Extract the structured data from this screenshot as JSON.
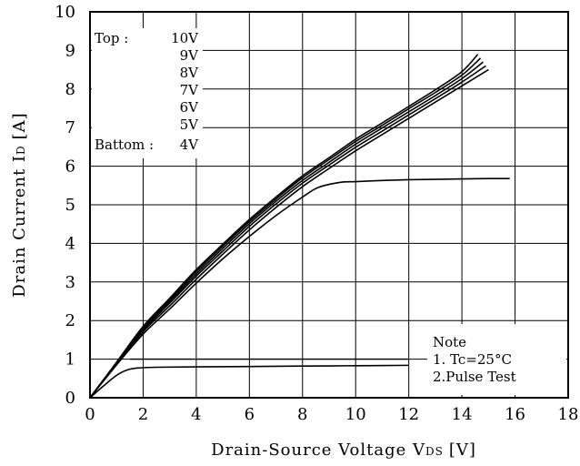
{
  "chart_data": {
    "type": "line",
    "xlabel": "Drain-Source Voltage V",
    "xlabel_sub": "DS",
    "xlabel_unit": "[V]",
    "ylabel": "Drain Current I",
    "ylabel_sub": "D",
    "ylabel_unit": "[A]",
    "xlim": [
      0,
      18
    ],
    "ylim": [
      0,
      10
    ],
    "x_ticks": [
      "0",
      "2",
      "4",
      "6",
      "8",
      "10",
      "12",
      "14",
      "16",
      "18"
    ],
    "y_ticks": [
      "0",
      "1",
      "2",
      "3",
      "4",
      "5",
      "6",
      "7",
      "8",
      "9",
      "10"
    ],
    "grid": true,
    "legend": {
      "top_label": "Top :",
      "bottom_label": "Battom :",
      "entries": [
        "10V",
        "9V",
        "8V",
        "7V",
        "6V",
        "5V",
        "4V"
      ]
    },
    "note": {
      "title": "Note",
      "line1": "1.  Tc=25°C",
      "line2": "2.Pulse Test"
    },
    "series": [
      {
        "name": "10V",
        "x": [
          0,
          1,
          2,
          3,
          4,
          5,
          6,
          7,
          8,
          9,
          10,
          11,
          12,
          13,
          14,
          14.6
        ],
        "y": [
          0,
          0.92,
          1.85,
          2.58,
          3.32,
          3.98,
          4.62,
          5.2,
          5.75,
          6.22,
          6.7,
          7.12,
          7.55,
          7.98,
          8.45,
          8.9
        ]
      },
      {
        "name": "9V",
        "x": [
          0,
          1,
          2,
          3,
          4,
          5,
          6,
          7,
          8,
          9,
          10,
          11,
          12,
          13,
          14,
          14.7
        ],
        "y": [
          0,
          0.91,
          1.82,
          2.54,
          3.27,
          3.93,
          4.57,
          5.15,
          5.7,
          6.17,
          6.64,
          7.06,
          7.49,
          7.91,
          8.36,
          8.8
        ]
      },
      {
        "name": "8V",
        "x": [
          0,
          1,
          2,
          3,
          4,
          5,
          6,
          7,
          8,
          9,
          10,
          11,
          12,
          13,
          14,
          14.8
        ],
        "y": [
          0,
          0.9,
          1.79,
          2.5,
          3.21,
          3.87,
          4.51,
          5.09,
          5.63,
          6.1,
          6.57,
          6.99,
          7.41,
          7.83,
          8.27,
          8.7
        ]
      },
      {
        "name": "7V",
        "x": [
          0,
          1,
          2,
          3,
          4,
          5,
          6,
          7,
          8,
          9,
          10,
          11,
          12,
          13,
          14,
          14.9
        ],
        "y": [
          0,
          0.89,
          1.75,
          2.45,
          3.15,
          3.8,
          4.44,
          5.02,
          5.56,
          6.03,
          6.49,
          6.91,
          7.33,
          7.75,
          8.18,
          8.6
        ]
      },
      {
        "name": "6V",
        "x": [
          0,
          1,
          2,
          3,
          4,
          5,
          6,
          7,
          8,
          9,
          10,
          11,
          12,
          13,
          14,
          15
        ],
        "y": [
          0,
          0.87,
          1.71,
          2.38,
          3.07,
          3.72,
          4.35,
          4.93,
          5.47,
          5.94,
          6.4,
          6.82,
          7.24,
          7.66,
          8.08,
          8.5
        ]
      },
      {
        "name": "5V",
        "x": [
          0,
          1,
          2,
          3,
          4,
          5,
          6,
          7,
          8,
          8.6,
          9.4,
          10,
          11,
          12,
          13,
          14,
          15,
          15.8
        ],
        "y": [
          0,
          0.85,
          1.65,
          2.3,
          2.97,
          3.6,
          4.18,
          4.72,
          5.2,
          5.45,
          5.58,
          5.6,
          5.63,
          5.65,
          5.66,
          5.67,
          5.68,
          5.68
        ]
      },
      {
        "name": "4V",
        "x": [
          0,
          0.5,
          1,
          1.4,
          1.8,
          2.5,
          4,
          6,
          8,
          10,
          12
        ],
        "y": [
          0,
          0.3,
          0.58,
          0.72,
          0.77,
          0.79,
          0.8,
          0.81,
          0.82,
          0.83,
          0.84
        ]
      }
    ],
    "reference_line": {
      "x": [
        1.5,
        12
      ],
      "y": [
        1,
        1
      ]
    }
  }
}
